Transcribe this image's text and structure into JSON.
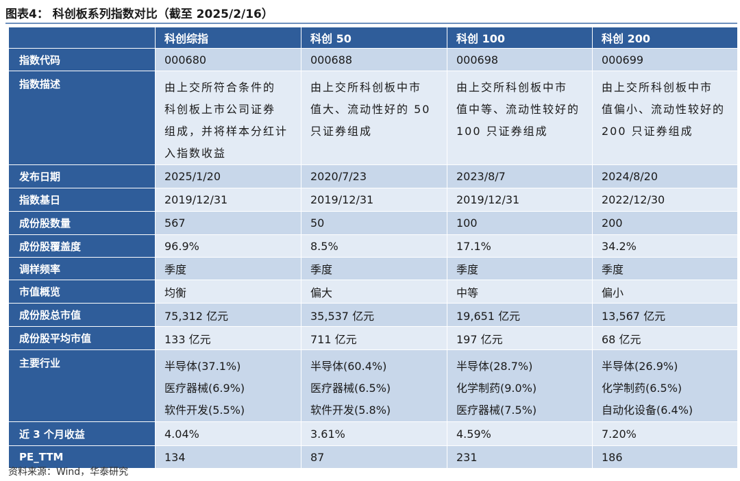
{
  "title": "图表4： 科创板系列指数对比（截至 2025/2/16）",
  "columns": [
    "科创综指",
    "科创 50",
    "科创 100",
    "科创 200"
  ],
  "rows": {
    "code": {
      "label": "指数代码",
      "values": [
        "000680",
        "000688",
        "000698",
        "000699"
      ]
    },
    "desc": {
      "label": "指数描述",
      "values": [
        [
          "由上交所符合条件的",
          "科创板上市公司证券",
          "组成，并将样本分红计",
          "入指数收益"
        ],
        [
          "由上交所科创板中市",
          "值大、流动性好的 50",
          "只证券组成"
        ],
        [
          "由上交所科创板中市",
          "值中等、流动性较好的",
          "100 只证券组成"
        ],
        [
          "由上交所科创板中市",
          "值偏小、流动性较好的",
          "200 只证券组成"
        ]
      ]
    },
    "release_date": {
      "label": "发布日期",
      "values": [
        "2025/1/20",
        "2020/7/23",
        "2023/8/7",
        "2024/8/20"
      ]
    },
    "base_date": {
      "label": "指数基日",
      "values": [
        "2019/12/31",
        "2019/12/31",
        "2019/12/31",
        "2022/12/30"
      ]
    },
    "constituents": {
      "label": "成份股数量",
      "values": [
        "567",
        "50",
        "100",
        "200"
      ]
    },
    "coverage": {
      "label": "成份股覆盖度",
      "values": [
        "96.9%",
        "8.5%",
        "17.1%",
        "34.2%"
      ]
    },
    "rebalance": {
      "label": "调样频率",
      "values": [
        "季度",
        "季度",
        "季度",
        "季度"
      ]
    },
    "cap_profile": {
      "label": "市值概览",
      "values": [
        "均衡",
        "偏大",
        "中等",
        "偏小"
      ]
    },
    "total_cap": {
      "label": "成份股总市值",
      "values": [
        "75,312 亿元",
        "35,537 亿元",
        "19,651 亿元",
        "13,567 亿元"
      ]
    },
    "avg_cap": {
      "label": "成份股平均市值",
      "values": [
        "133 亿元",
        "711 亿元",
        "197 亿元",
        "68 亿元"
      ]
    },
    "industries": {
      "label": "主要行业",
      "values": [
        [
          "半导体(37.1%)",
          "医疗器械(6.9%)",
          "软件开发(5.5%)"
        ],
        [
          "半导体(60.4%)",
          "医疗器械(6.5%)",
          "软件开发(5.8%)"
        ],
        [
          "半导体(28.7%)",
          "化学制药(9.0%)",
          "医疗器械(7.5%)"
        ],
        [
          "半导体(26.9%)",
          "化学制药(6.5%)",
          "自动化设备(6.4%)"
        ]
      ]
    },
    "return_3m": {
      "label": "近 3 个月收益",
      "values": [
        "4.04%",
        "3.61%",
        "4.59%",
        "7.20%"
      ]
    },
    "pe_ttm": {
      "label": "PE_TTM",
      "values": [
        "134",
        "87",
        "231",
        "186"
      ]
    }
  },
  "source": "资料来源：Wind，华泰研究"
}
